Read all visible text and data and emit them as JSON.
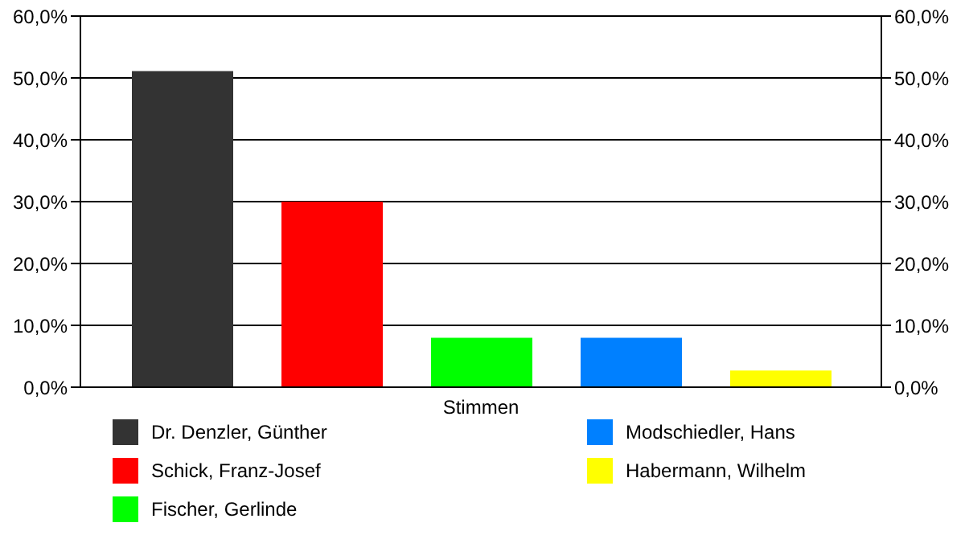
{
  "chart_data": {
    "type": "bar",
    "categories": [
      "Stimmen"
    ],
    "series": [
      {
        "name": "Dr. Denzler, Günther",
        "color": "#333333",
        "values": [
          51.1
        ]
      },
      {
        "name": "Schick, Franz-Josef",
        "color": "#ff0000",
        "values": [
          30.0
        ]
      },
      {
        "name": "Fischer, Gerlinde",
        "color": "#00ff00",
        "values": [
          8.0
        ]
      },
      {
        "name": "Modschiedler, Hans",
        "color": "#0080ff",
        "values": [
          8.0
        ]
      },
      {
        "name": "Habermann, Wilhelm",
        "color": "#ffff00",
        "values": [
          2.7
        ]
      }
    ],
    "ylim": [
      0,
      60
    ],
    "yticks": [
      {
        "value": 0,
        "label": "0,0%"
      },
      {
        "value": 10,
        "label": "10,0%"
      },
      {
        "value": 20,
        "label": "20,0%"
      },
      {
        "value": 30,
        "label": "30,0%"
      },
      {
        "value": 40,
        "label": "40,0%"
      },
      {
        "value": 50,
        "label": "50,0%"
      },
      {
        "value": 60,
        "label": "60,0%"
      }
    ],
    "grid": "y",
    "legend": "bottom"
  }
}
